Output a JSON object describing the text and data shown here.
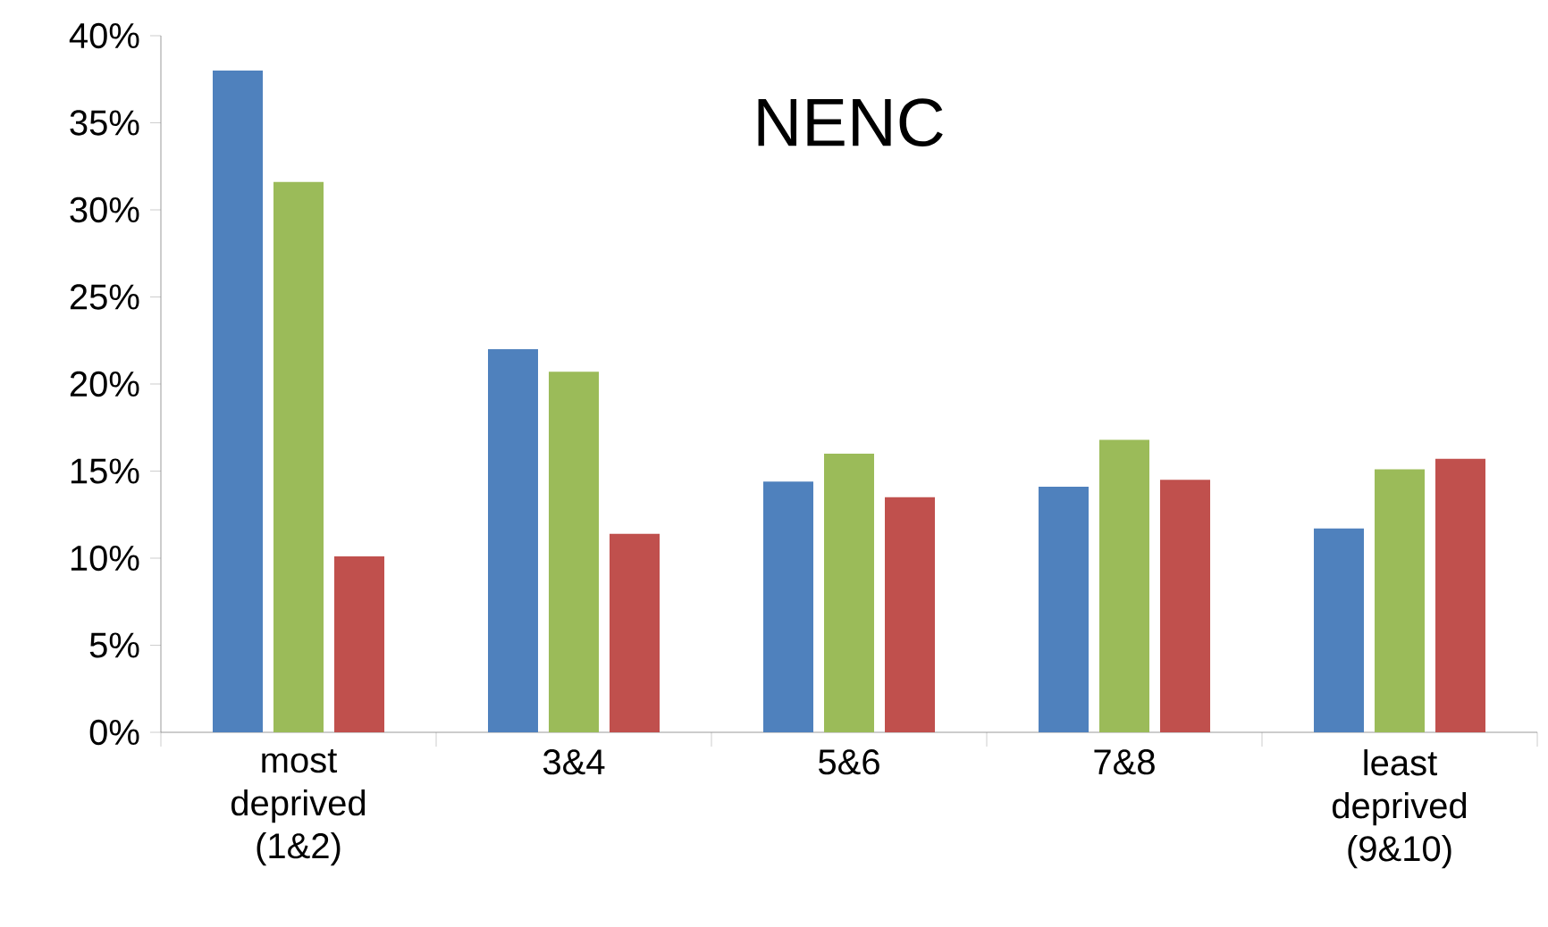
{
  "chart_data": {
    "type": "bar",
    "title": "NENC",
    "categories": [
      "most deprived (1&2)",
      "3&4",
      "5&6",
      "7&8",
      "least deprived (9&10)"
    ],
    "series": [
      {
        "color": "#4f81bd",
        "values": [
          38.0,
          22.0,
          14.4,
          14.1,
          11.7
        ]
      },
      {
        "color": "#9bbb59",
        "values": [
          31.6,
          20.7,
          16.0,
          16.8,
          15.1
        ]
      },
      {
        "color": "#c0504d",
        "values": [
          10.1,
          11.4,
          13.5,
          14.5,
          15.7
        ]
      }
    ],
    "ylim": [
      0,
      40
    ],
    "yticks": [
      {
        "value": 0,
        "label": "0%"
      },
      {
        "value": 5,
        "label": "5%"
      },
      {
        "value": 10,
        "label": "10%"
      },
      {
        "value": 15,
        "label": "15%"
      },
      {
        "value": 20,
        "label": "20%"
      },
      {
        "value": 25,
        "label": "25%"
      },
      {
        "value": 30,
        "label": "30%"
      },
      {
        "value": 35,
        "label": "35%"
      },
      {
        "value": 40,
        "label": "40%"
      }
    ],
    "grid": false
  }
}
